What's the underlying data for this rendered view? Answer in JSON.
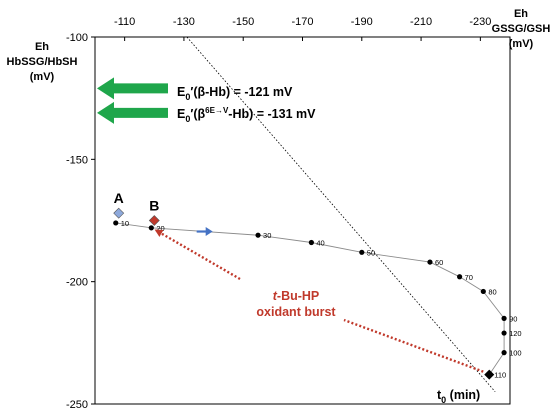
{
  "chart_data": {
    "type": "scatter",
    "left_axis": {
      "title_lines": [
        "Eh",
        "HbSSG/HbSH",
        "(mV)"
      ],
      "ticks": [
        -100,
        -150,
        -200,
        -250
      ],
      "range": [
        -100,
        -250
      ]
    },
    "top_axis": {
      "title_lines": [
        "Eh",
        "GSSG/GSH",
        "(mV)"
      ],
      "ticks": [
        -110,
        -130,
        -150,
        -170,
        -190,
        -210,
        -230
      ],
      "range": [
        -100,
        -240
      ]
    },
    "time_series": {
      "x_unit": "Eh GSSG/GSH (mV)",
      "y_unit": "Eh HbSSG/HbSH (mV)",
      "points": [
        {
          "label": "10",
          "x": -107,
          "y": -176
        },
        {
          "label": "20",
          "x": -119,
          "y": -178
        },
        {
          "label": "30",
          "x": -155,
          "y": -181
        },
        {
          "label": "40",
          "x": -173,
          "y": -184
        },
        {
          "label": "50",
          "x": -190,
          "y": -188
        },
        {
          "label": "60",
          "x": -213,
          "y": -192
        },
        {
          "label": "70",
          "x": -223,
          "y": -198
        },
        {
          "label": "80",
          "x": -231,
          "y": -204
        },
        {
          "label": "90",
          "x": -238,
          "y": -215
        },
        {
          "label": "120",
          "x": -238,
          "y": -221
        },
        {
          "label": "100",
          "x": -238,
          "y": -229
        },
        {
          "label": "110",
          "x": -233,
          "y": -238
        }
      ],
      "marker_color": "#000000",
      "line_color": "#8c8c8c",
      "direction_arrow_color": "#4472c4"
    },
    "markers": [
      {
        "label": "A",
        "x": -108,
        "y": -172,
        "color": "#8ea9db"
      },
      {
        "label": "B",
        "x": -120,
        "y": -175,
        "color": "#c0392b"
      }
    ],
    "start_marker": {
      "label_main": "t",
      "label_sub": "0",
      "label_rest": " (min)",
      "x": -233,
      "y": -238
    },
    "diagonal_line": {
      "from": {
        "x": -131,
        "y": -100
      },
      "to": {
        "x": -235,
        "y": -245
      },
      "style": "dotted"
    },
    "reference_potentials": [
      {
        "y": -121,
        "text_lead": "E",
        "text_sub": "0",
        "text_body": "′(β-Hb) = -121 mV",
        "arrow_color": "#1fa64b"
      },
      {
        "y": -131,
        "text_lead": "E",
        "text_sub": "0",
        "text_prime": "′(β",
        "text_sup": "6E→V",
        "text_tail": "-Hb) = -131 mV",
        "arrow_color": "#1fa64b"
      }
    ],
    "annotation": {
      "italic_part": "t",
      "line1_rest": "-Bu-HP",
      "line2": "oxidant burst",
      "color": "#c0392b",
      "arrow_color": "#c0392b"
    }
  }
}
